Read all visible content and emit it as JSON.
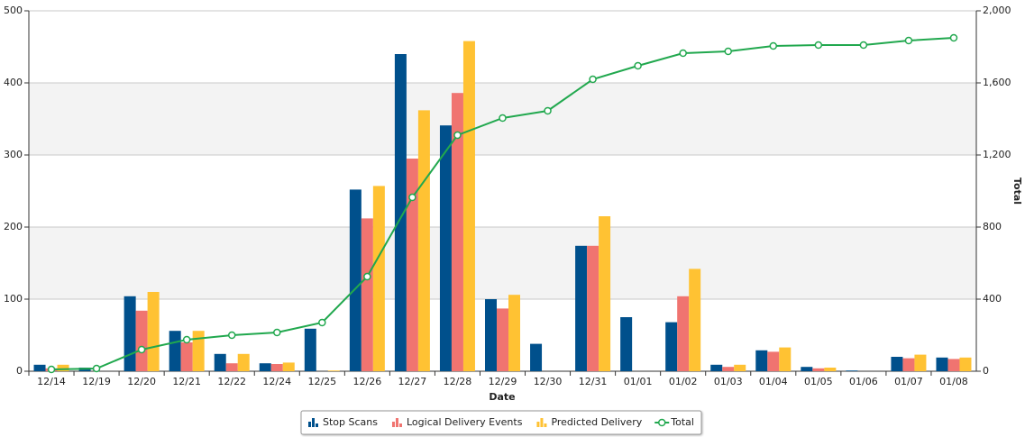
{
  "chart_data": {
    "type": "bar",
    "x_label": "Date",
    "y2_label": "Total",
    "categories": [
      "12/14",
      "12/19",
      "12/20",
      "12/21",
      "12/22",
      "12/24",
      "12/25",
      "12/26",
      "12/27",
      "12/28",
      "12/29",
      "12/30",
      "12/31",
      "01/01",
      "01/02",
      "01/03",
      "01/04",
      "01/05",
      "01/06",
      "01/07",
      "01/08"
    ],
    "series": [
      {
        "name": "Stop Scans",
        "type": "bar",
        "color": "#00508c",
        "values": [
          9,
          5,
          104,
          56,
          24,
          11,
          59,
          252,
          440,
          341,
          100,
          38,
          174,
          75,
          68,
          9,
          29,
          6,
          1,
          20,
          19
        ]
      },
      {
        "name": "Logical Delivery Events",
        "type": "bar",
        "color": "#f07470",
        "values": [
          4,
          0,
          84,
          40,
          11,
          10,
          0,
          212,
          295,
          386,
          87,
          0,
          174,
          0,
          104,
          6,
          27,
          4,
          0,
          18,
          17
        ]
      },
      {
        "name": "Predicted Delivery",
        "type": "bar",
        "color": "#ffc233",
        "values": [
          9,
          0,
          110,
          56,
          24,
          12,
          1,
          257,
          362,
          458,
          106,
          0,
          215,
          0,
          142,
          9,
          33,
          5,
          0,
          23,
          19
        ]
      },
      {
        "name": "Total",
        "type": "line",
        "axis": "y2",
        "color": "#21a84e",
        "values": [
          10,
          15,
          120,
          175,
          200,
          215,
          270,
          525,
          965,
          1310,
          1405,
          1445,
          1620,
          1695,
          1765,
          1775,
          1805,
          1810,
          1810,
          1835,
          1850
        ]
      }
    ],
    "ylim": [
      0,
      500
    ],
    "yticks": [
      0,
      100,
      200,
      300,
      400,
      500
    ],
    "y2lim": [
      0,
      2000
    ],
    "y2ticks": [
      0,
      400,
      800,
      {
        "value": 1200,
        "label": "1,200"
      },
      {
        "value": 1600,
        "label": "1,600"
      },
      {
        "value": 2000,
        "label": "2,000"
      }
    ],
    "grid": true,
    "legend": "bottom"
  }
}
